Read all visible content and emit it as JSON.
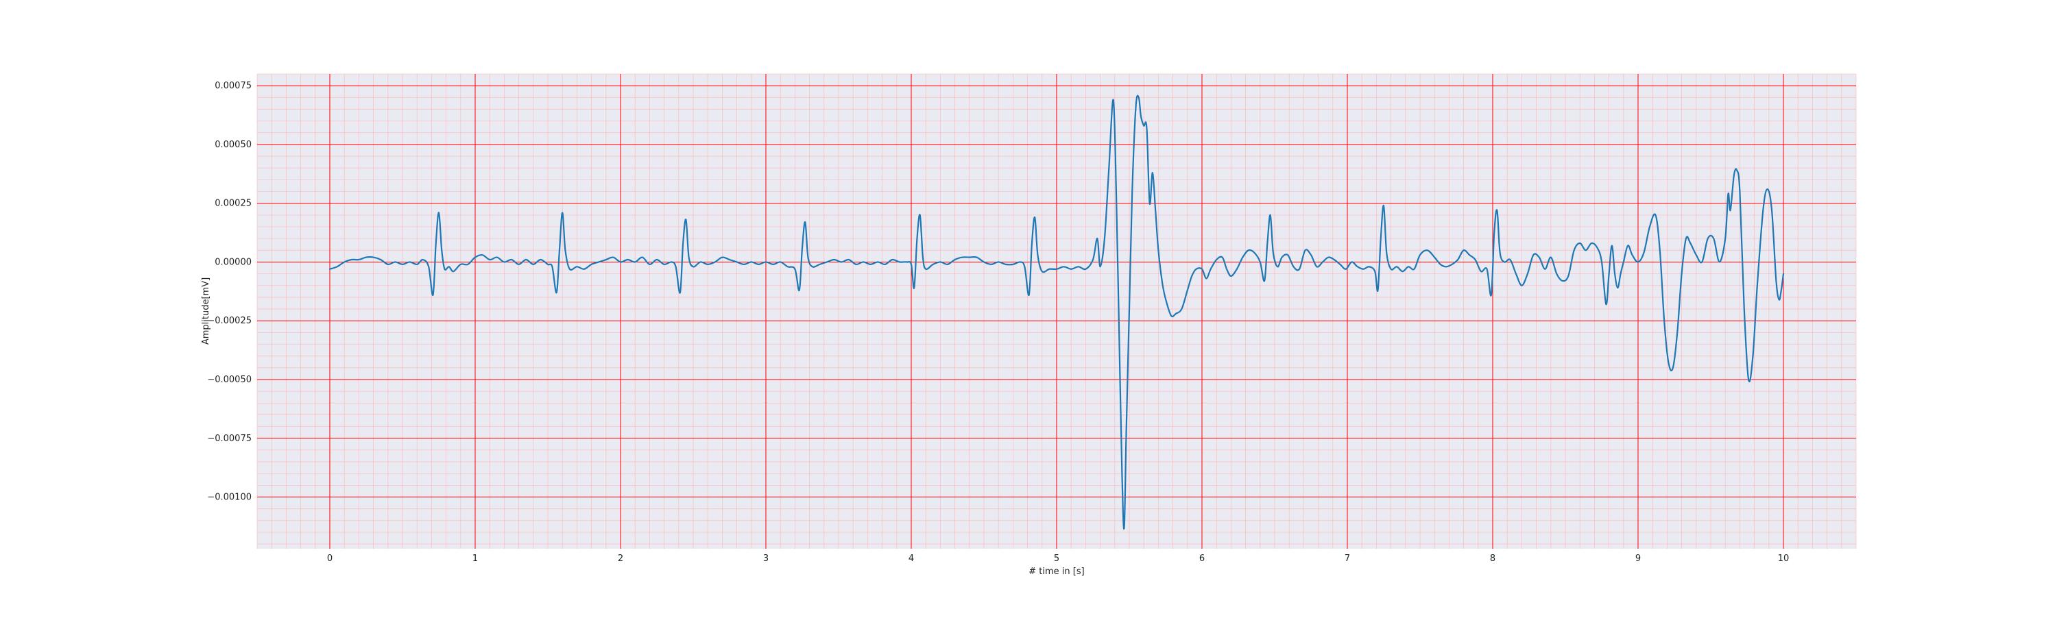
{
  "chart_data": {
    "type": "line",
    "title": "",
    "xlabel": "# time in [s]",
    "ylabel": "Amplitude[mV]",
    "xlim": [
      -0.5,
      10.5
    ],
    "ylim": [
      -0.00122,
      0.0008
    ],
    "x_ticks": [
      0,
      1,
      2,
      3,
      4,
      5,
      6,
      7,
      8,
      9,
      10
    ],
    "x_tick_labels": [
      "0",
      "1",
      "2",
      "3",
      "4",
      "5",
      "6",
      "7",
      "8",
      "9",
      "10"
    ],
    "y_ticks": [
      0.00075,
      0.0005,
      0.00025,
      0.0,
      -0.00025,
      -0.0005,
      -0.00075,
      -0.001
    ],
    "y_tick_labels": [
      "0.00075",
      "0.00050",
      "0.00025",
      "0.00000",
      "−0.00025",
      "−0.00050",
      "−0.00075",
      "−0.00100"
    ],
    "grid": true,
    "grid_major_color": "#ff0000",
    "grid_minor_color": "#ffb0b0",
    "plot_background": "#eaeaf2",
    "line_color": "#1f77b4",
    "series": [
      {
        "points": [
          [
            0.0,
            -3e-05
          ],
          [
            0.05,
            -2e-05
          ],
          [
            0.1,
            0.0
          ],
          [
            0.15,
            1e-05
          ],
          [
            0.2,
            1e-05
          ],
          [
            0.25,
            2e-05
          ],
          [
            0.3,
            2e-05
          ],
          [
            0.35,
            1e-05
          ],
          [
            0.4,
            -1e-05
          ],
          [
            0.45,
            0.0
          ],
          [
            0.5,
            -1e-05
          ],
          [
            0.55,
            0.0
          ],
          [
            0.6,
            -1e-05
          ],
          [
            0.64,
            1e-05
          ],
          [
            0.68,
            -2e-05
          ],
          [
            0.71,
            -0.00014
          ],
          [
            0.73,
            8e-05
          ],
          [
            0.75,
            0.00021
          ],
          [
            0.77,
            5e-05
          ],
          [
            0.79,
            -3e-05
          ],
          [
            0.82,
            -2e-05
          ],
          [
            0.85,
            -4e-05
          ],
          [
            0.9,
            -1e-05
          ],
          [
            0.95,
            -1e-05
          ],
          [
            1.0,
            2e-05
          ],
          [
            1.05,
            3e-05
          ],
          [
            1.1,
            1e-05
          ],
          [
            1.15,
            2e-05
          ],
          [
            1.2,
            0.0
          ],
          [
            1.25,
            1e-05
          ],
          [
            1.3,
            -1e-05
          ],
          [
            1.35,
            1e-05
          ],
          [
            1.4,
            -1e-05
          ],
          [
            1.45,
            1e-05
          ],
          [
            1.5,
            -1e-05
          ],
          [
            1.53,
            -2e-05
          ],
          [
            1.56,
            -0.00013
          ],
          [
            1.58,
            5e-05
          ],
          [
            1.6,
            0.00021
          ],
          [
            1.62,
            5e-05
          ],
          [
            1.65,
            -3e-05
          ],
          [
            1.7,
            -2e-05
          ],
          [
            1.75,
            -3e-05
          ],
          [
            1.8,
            -1e-05
          ],
          [
            1.85,
            0.0
          ],
          [
            1.9,
            1e-05
          ],
          [
            1.95,
            2e-05
          ],
          [
            2.0,
            0.0
          ],
          [
            2.05,
            1e-05
          ],
          [
            2.1,
            0.0
          ],
          [
            2.15,
            2e-05
          ],
          [
            2.2,
            -1e-05
          ],
          [
            2.25,
            1e-05
          ],
          [
            2.3,
            -1e-05
          ],
          [
            2.35,
            0.0
          ],
          [
            2.38,
            -2e-05
          ],
          [
            2.41,
            -0.00013
          ],
          [
            2.43,
            8e-05
          ],
          [
            2.45,
            0.00018
          ],
          [
            2.47,
            2e-05
          ],
          [
            2.5,
            -2e-05
          ],
          [
            2.55,
            0.0
          ],
          [
            2.6,
            -1e-05
          ],
          [
            2.65,
            0.0
          ],
          [
            2.7,
            2e-05
          ],
          [
            2.75,
            1e-05
          ],
          [
            2.8,
            0.0
          ],
          [
            2.85,
            -1e-05
          ],
          [
            2.9,
            0.0
          ],
          [
            2.95,
            -1e-05
          ],
          [
            3.0,
            0.0
          ],
          [
            3.05,
            -1e-05
          ],
          [
            3.1,
            0.0
          ],
          [
            3.15,
            -2e-05
          ],
          [
            3.2,
            -3e-05
          ],
          [
            3.23,
            -0.00012
          ],
          [
            3.25,
            6e-05
          ],
          [
            3.27,
            0.00017
          ],
          [
            3.29,
            2e-05
          ],
          [
            3.32,
            -2e-05
          ],
          [
            3.37,
            -1e-05
          ],
          [
            3.42,
            0.0
          ],
          [
            3.47,
            1e-05
          ],
          [
            3.52,
            0.0
          ],
          [
            3.57,
            1e-05
          ],
          [
            3.62,
            -1e-05
          ],
          [
            3.67,
            0.0
          ],
          [
            3.72,
            -1e-05
          ],
          [
            3.77,
            0.0
          ],
          [
            3.82,
            -1e-05
          ],
          [
            3.87,
            1e-05
          ],
          [
            3.92,
            0.0
          ],
          [
            3.97,
            0.0
          ],
          [
            4.0,
            -1e-05
          ],
          [
            4.02,
            -0.00011
          ],
          [
            4.04,
            0.0001
          ],
          [
            4.06,
            0.0002
          ],
          [
            4.08,
            2e-05
          ],
          [
            4.1,
            -3e-05
          ],
          [
            4.15,
            -1e-05
          ],
          [
            4.2,
            0.0
          ],
          [
            4.25,
            -1e-05
          ],
          [
            4.3,
            1e-05
          ],
          [
            4.35,
            2e-05
          ],
          [
            4.4,
            2e-05
          ],
          [
            4.45,
            2e-05
          ],
          [
            4.5,
            0.0
          ],
          [
            4.55,
            -1e-05
          ],
          [
            4.6,
            0.0
          ],
          [
            4.65,
            -1e-05
          ],
          [
            4.7,
            -1e-05
          ],
          [
            4.75,
            0.0
          ],
          [
            4.78,
            -2e-05
          ],
          [
            4.81,
            -0.00014
          ],
          [
            4.83,
            8e-05
          ],
          [
            4.85,
            0.00019
          ],
          [
            4.87,
            3e-05
          ],
          [
            4.9,
            -4e-05
          ],
          [
            4.95,
            -3e-05
          ],
          [
            5.0,
            -3e-05
          ],
          [
            5.05,
            -2e-05
          ],
          [
            5.1,
            -3e-05
          ],
          [
            5.15,
            -2e-05
          ],
          [
            5.2,
            -3e-05
          ],
          [
            5.25,
            1e-05
          ],
          [
            5.28,
            0.0001
          ],
          [
            5.3,
            -2e-05
          ],
          [
            5.33,
            0.0001
          ],
          [
            5.36,
            0.0004
          ],
          [
            5.39,
            0.00069
          ],
          [
            5.41,
            0.0003
          ],
          [
            5.43,
            -0.0003
          ],
          [
            5.45,
            -0.0009
          ],
          [
            5.465,
            -0.00113
          ],
          [
            5.48,
            -0.0007
          ],
          [
            5.5,
            -0.0002
          ],
          [
            5.52,
            0.0003
          ],
          [
            5.545,
            0.00066
          ],
          [
            5.565,
            0.0007
          ],
          [
            5.58,
            0.00062
          ],
          [
            5.6,
            0.00058
          ],
          [
            5.62,
            0.00057
          ],
          [
            5.64,
            0.00025
          ],
          [
            5.66,
            0.00038
          ],
          [
            5.68,
            0.00022
          ],
          [
            5.7,
            5e-05
          ],
          [
            5.73,
            -0.0001
          ],
          [
            5.76,
            -0.00018
          ],
          [
            5.79,
            -0.00023
          ],
          [
            5.82,
            -0.00022
          ],
          [
            5.86,
            -0.0002
          ],
          [
            5.9,
            -0.00012
          ],
          [
            5.93,
            -6e-05
          ],
          [
            5.96,
            -3e-05
          ],
          [
            6.0,
            -3e-05
          ],
          [
            6.03,
            -7e-05
          ],
          [
            6.06,
            -3e-05
          ],
          [
            6.1,
            1e-05
          ],
          [
            6.14,
            2e-05
          ],
          [
            6.17,
            -3e-05
          ],
          [
            6.2,
            -6e-05
          ],
          [
            6.24,
            -3e-05
          ],
          [
            6.28,
            2e-05
          ],
          [
            6.32,
            5e-05
          ],
          [
            6.36,
            4e-05
          ],
          [
            6.4,
            0.0
          ],
          [
            6.43,
            -8e-05
          ],
          [
            6.45,
            8e-05
          ],
          [
            6.47,
            0.0002
          ],
          [
            6.49,
            4e-05
          ],
          [
            6.52,
            -2e-05
          ],
          [
            6.55,
            2e-05
          ],
          [
            6.59,
            3e-05
          ],
          [
            6.63,
            -2e-05
          ],
          [
            6.67,
            -3e-05
          ],
          [
            6.71,
            5e-05
          ],
          [
            6.75,
            3e-05
          ],
          [
            6.79,
            -2e-05
          ],
          [
            6.83,
            0.0
          ],
          [
            6.87,
            2e-05
          ],
          [
            6.91,
            1e-05
          ],
          [
            6.95,
            -1e-05
          ],
          [
            6.99,
            -3e-05
          ],
          [
            7.03,
            0.0
          ],
          [
            7.07,
            -2e-05
          ],
          [
            7.11,
            -3e-05
          ],
          [
            7.15,
            -2e-05
          ],
          [
            7.19,
            -4e-05
          ],
          [
            7.21,
            -0.00012
          ],
          [
            7.23,
            0.0001
          ],
          [
            7.25,
            0.00024
          ],
          [
            7.27,
            4e-05
          ],
          [
            7.3,
            -3e-05
          ],
          [
            7.34,
            -2e-05
          ],
          [
            7.38,
            -4e-05
          ],
          [
            7.42,
            -2e-05
          ],
          [
            7.46,
            -3e-05
          ],
          [
            7.5,
            3e-05
          ],
          [
            7.55,
            5e-05
          ],
          [
            7.6,
            2e-05
          ],
          [
            7.64,
            -1e-05
          ],
          [
            7.68,
            -2e-05
          ],
          [
            7.72,
            -1e-05
          ],
          [
            7.76,
            1e-05
          ],
          [
            7.8,
            5e-05
          ],
          [
            7.84,
            3e-05
          ],
          [
            7.88,
            1e-05
          ],
          [
            7.92,
            -4e-05
          ],
          [
            7.96,
            -3e-05
          ],
          [
            7.99,
            -0.00014
          ],
          [
            8.01,
            0.00012
          ],
          [
            8.03,
            0.00022
          ],
          [
            8.05,
            4e-05
          ],
          [
            8.08,
            0.0
          ],
          [
            8.12,
            1e-05
          ],
          [
            8.16,
            -5e-05
          ],
          [
            8.2,
            -0.0001
          ],
          [
            8.24,
            -5e-05
          ],
          [
            8.28,
            3e-05
          ],
          [
            8.32,
            2e-05
          ],
          [
            8.36,
            -3e-05
          ],
          [
            8.4,
            2e-05
          ],
          [
            8.44,
            -5e-05
          ],
          [
            8.48,
            -8e-05
          ],
          [
            8.52,
            -6e-05
          ],
          [
            8.56,
            5e-05
          ],
          [
            8.6,
            8e-05
          ],
          [
            8.64,
            5e-05
          ],
          [
            8.68,
            8e-05
          ],
          [
            8.72,
            6e-05
          ],
          [
            8.75,
            0.0
          ],
          [
            8.78,
            -0.00018
          ],
          [
            8.8,
            -5e-05
          ],
          [
            8.82,
            7e-05
          ],
          [
            8.84,
            -5e-05
          ],
          [
            8.86,
            -0.00011
          ],
          [
            8.88,
            -5e-05
          ],
          [
            8.9,
            0.0
          ],
          [
            8.93,
            7e-05
          ],
          [
            8.96,
            3e-05
          ],
          [
            9.0,
            0.0
          ],
          [
            9.04,
            4e-05
          ],
          [
            9.08,
            0.00015
          ],
          [
            9.12,
            0.0002
          ],
          [
            9.15,
            5e-05
          ],
          [
            9.18,
            -0.00025
          ],
          [
            9.21,
            -0.00043
          ],
          [
            9.24,
            -0.00045
          ],
          [
            9.27,
            -0.0003
          ],
          [
            9.3,
            -5e-05
          ],
          [
            9.33,
            0.0001
          ],
          [
            9.36,
            8e-05
          ],
          [
            9.4,
            3e-05
          ],
          [
            9.44,
            0.0
          ],
          [
            9.48,
            0.0001
          ],
          [
            9.52,
            0.0001
          ],
          [
            9.56,
            0.0
          ],
          [
            9.6,
            0.0001
          ],
          [
            9.62,
            0.00029
          ],
          [
            9.635,
            0.00022
          ],
          [
            9.66,
            0.00037
          ],
          [
            9.68,
            0.00039
          ],
          [
            9.7,
            0.0003
          ],
          [
            9.73,
            -0.0002
          ],
          [
            9.76,
            -0.0005
          ],
          [
            9.79,
            -0.0004
          ],
          [
            9.82,
            -0.0001
          ],
          [
            9.86,
            0.00022
          ],
          [
            9.89,
            0.00031
          ],
          [
            9.92,
            0.00022
          ],
          [
            9.95,
            -8e-05
          ],
          [
            9.97,
            -0.00016
          ],
          [
            9.985,
            -0.00012
          ],
          [
            10.0,
            -5e-05
          ]
        ]
      }
    ]
  }
}
